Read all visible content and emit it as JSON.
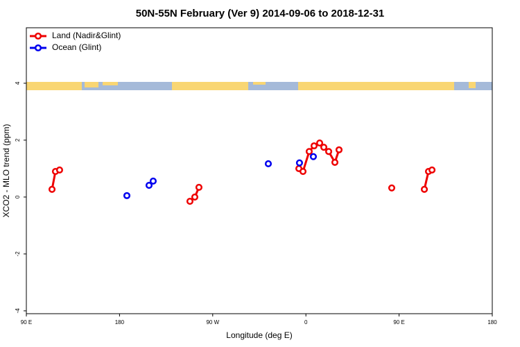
{
  "chart_data": {
    "type": "line",
    "title": "50N-55N February (Ver 9)   2014-09-06 to 2018-12-31",
    "x_label": "Longitude (deg E)",
    "y_label": "XCO2 - MLO trend (ppm)",
    "xlim": [
      90,
      540
    ],
    "ylim": [
      -4.1,
      5.95
    ],
    "xticks": [
      {
        "value": 90,
        "label": "90 E"
      },
      {
        "value": 180,
        "label": "180"
      },
      {
        "value": 270,
        "label": "90 W"
      },
      {
        "value": 360,
        "label": "0"
      },
      {
        "value": 450,
        "label": "90 E"
      },
      {
        "value": 540,
        "label": "180"
      }
    ],
    "yticks": [
      -4,
      -2,
      0,
      2,
      4
    ],
    "legend": "top-left",
    "series": [
      {
        "name": "Land (Nadir&Glint)",
        "color": "#ee0000",
        "lines": true,
        "x": [
          114.8,
          118.1,
          122.1,
          null,
          248,
          252.7,
          256.7,
          null,
          353.2,
          357.2,
          363.2,
          367.9,
          373.3,
          377.3,
          382,
          388,
          392,
          null,
          442.9,
          null,
          474.4,
          478.4,
          481.8
        ],
        "values": [
          0.27,
          0.9,
          0.95,
          null,
          -0.15,
          0,
          0.34,
          null,
          1.0,
          0.9,
          1.6,
          1.8,
          1.9,
          1.75,
          1.6,
          1.22,
          1.66,
          null,
          0.32,
          null,
          0.27,
          0.9,
          0.95
        ]
      },
      {
        "name": "Ocean (Glint)",
        "color": "#0000ee",
        "lines": false,
        "x": [
          187.1,
          208.5,
          212.5,
          323.7,
          353.8,
          367.2
        ],
        "values": [
          0.05,
          0.41,
          0.56,
          1.17,
          1.2,
          1.42
        ]
      }
    ]
  }
}
